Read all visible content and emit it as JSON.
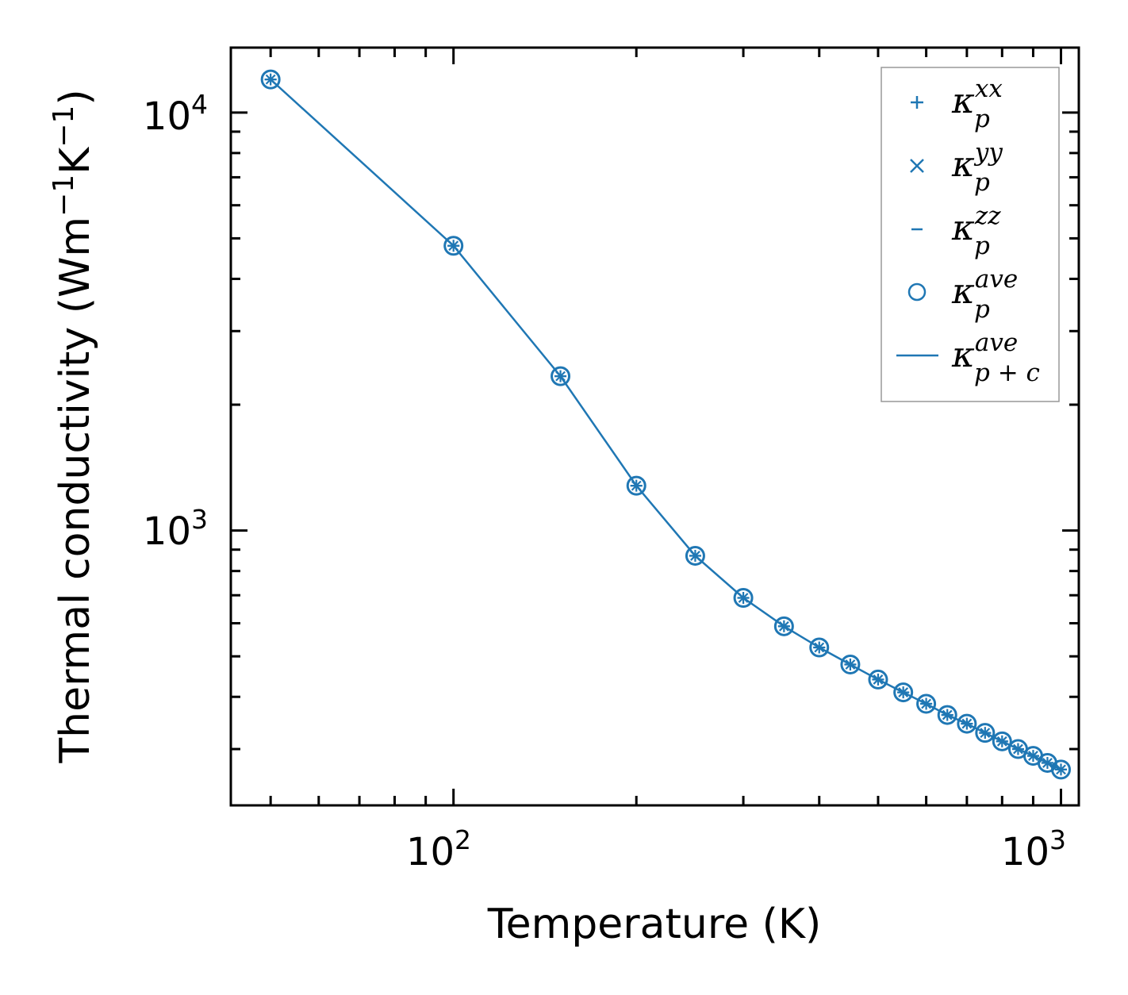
{
  "chart_data": {
    "type": "line",
    "title": "",
    "xlabel": "Temperature (K)",
    "ylabel_parts": [
      "Thermal conductivity (Wm",
      "−1",
      "K",
      "−1",
      ")"
    ],
    "x_scale": "log",
    "y_scale": "log",
    "xlim": [
      43,
      1070
    ],
    "ylim": [
      220,
      14300
    ],
    "x_major_ticks": [
      {
        "base": "10",
        "exp": "2",
        "value": 100
      },
      {
        "base": "10",
        "exp": "3",
        "value": 1000
      }
    ],
    "y_major_ticks": [
      {
        "base": "10",
        "exp": "3",
        "value": 1000
      },
      {
        "base": "10",
        "exp": "4",
        "value": 10000
      }
    ],
    "x": [
      50,
      100,
      150,
      200,
      250,
      300,
      350,
      400,
      450,
      500,
      550,
      600,
      650,
      700,
      750,
      800,
      850,
      900,
      950,
      1000
    ],
    "series": [
      {
        "name": "kappa_p^xx",
        "marker": "plus",
        "label_base": "κ",
        "label_sub": "p",
        "label_sup": "xx",
        "values": [
          12000,
          4800,
          2340,
          1280,
          870,
          690,
          590,
          525,
          478,
          440,
          410,
          385,
          362,
          345,
          328,
          313,
          300,
          289,
          278,
          268
        ]
      },
      {
        "name": "kappa_p^yy",
        "marker": "x",
        "label_base": "κ",
        "label_sub": "p",
        "label_sup": "yy",
        "values": [
          12000,
          4800,
          2340,
          1280,
          870,
          690,
          590,
          525,
          478,
          440,
          410,
          385,
          362,
          345,
          328,
          313,
          300,
          289,
          278,
          268
        ]
      },
      {
        "name": "kappa_p^zz",
        "marker": "hline",
        "label_base": "κ",
        "label_sub": "p",
        "label_sup": "zz",
        "values": [
          12000,
          4800,
          2340,
          1280,
          870,
          690,
          590,
          525,
          478,
          440,
          410,
          385,
          362,
          345,
          328,
          313,
          300,
          289,
          278,
          268
        ]
      },
      {
        "name": "kappa_p^ave",
        "marker": "circle",
        "label_base": "κ",
        "label_sub": "p",
        "label_sup": "ave",
        "values": [
          12000,
          4800,
          2340,
          1280,
          870,
          690,
          590,
          525,
          478,
          440,
          410,
          385,
          362,
          345,
          328,
          313,
          300,
          289,
          278,
          268
        ]
      },
      {
        "name": "kappa_p+c^ave",
        "marker": "line",
        "label_base": "κ",
        "label_sub": "p + c",
        "label_sup": "ave",
        "values": [
          12000,
          4800,
          2340,
          1280,
          870,
          690,
          590,
          525,
          478,
          440,
          410,
          385,
          362,
          345,
          328,
          313,
          300,
          289,
          278,
          268
        ]
      }
    ],
    "legend_position": "top-right",
    "grid": false,
    "color": "#1f77b4"
  }
}
